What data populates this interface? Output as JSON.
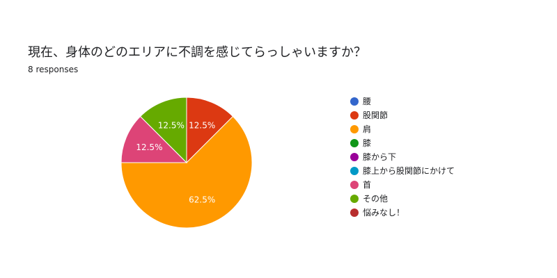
{
  "header": {
    "question": "現在、身体のどのエリアに不調を感じてらっしゃいますか？",
    "response_count": "8 responses"
  },
  "chart_data": {
    "type": "pie",
    "slices": [
      {
        "label": "腰",
        "value": 0,
        "percent_label": "",
        "color": "#3366cc"
      },
      {
        "label": "股関節",
        "value": 1,
        "percent_label": "12.5%",
        "color": "#dc3912"
      },
      {
        "label": "肩",
        "value": 5,
        "percent_label": "62.5%",
        "color": "#ff9900"
      },
      {
        "label": "膝",
        "value": 0,
        "percent_label": "",
        "color": "#109618"
      },
      {
        "label": "膝から下",
        "value": 0,
        "percent_label": "",
        "color": "#990099"
      },
      {
        "label": "膝上から股関節にかけて",
        "value": 0,
        "percent_label": "",
        "color": "#0099c6"
      },
      {
        "label": "首",
        "value": 1,
        "percent_label": "12.5%",
        "color": "#dd4477"
      },
      {
        "label": "その他",
        "value": 1,
        "percent_label": "12.5%",
        "color": "#66aa00"
      },
      {
        "label": "悩みなし！",
        "value": 0,
        "percent_label": "",
        "color": "#b82e2e"
      }
    ],
    "total": 8,
    "legend_position": "right"
  }
}
